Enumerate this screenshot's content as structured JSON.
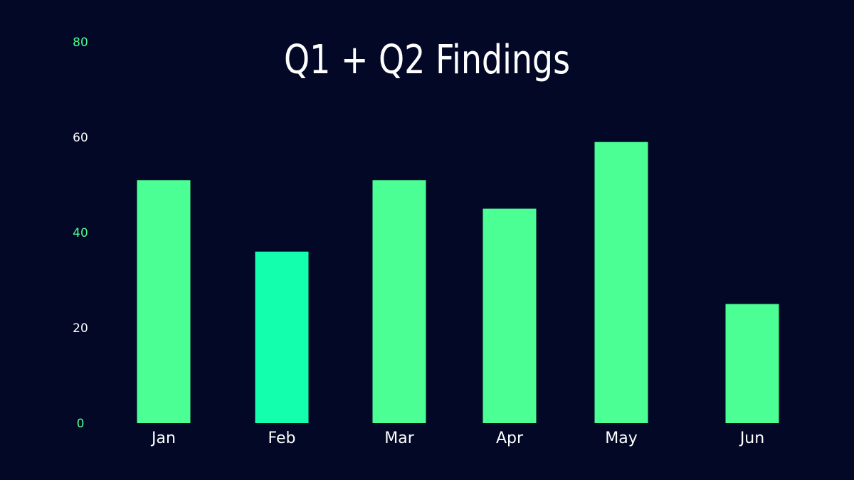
{
  "chart_data": {
    "type": "bar",
    "title": "Q1 + Q2 Findings",
    "xlabel": "",
    "ylabel": "",
    "categories": [
      "Jan",
      "Feb",
      "Mar",
      "Apr",
      "May",
      "Jun"
    ],
    "values": [
      51,
      36,
      51,
      45,
      59,
      25
    ],
    "ylim": [
      0,
      80
    ],
    "yticks": [
      0,
      20,
      40,
      60,
      80
    ],
    "grid": false,
    "colors": {
      "background": "#020826",
      "bar": "#4cff95",
      "bar_highlight": "#13ffad",
      "tick_green": "#4cff95",
      "tick_white": "#ffffff",
      "text": "#ffffff"
    },
    "highlight_category": "Feb"
  }
}
